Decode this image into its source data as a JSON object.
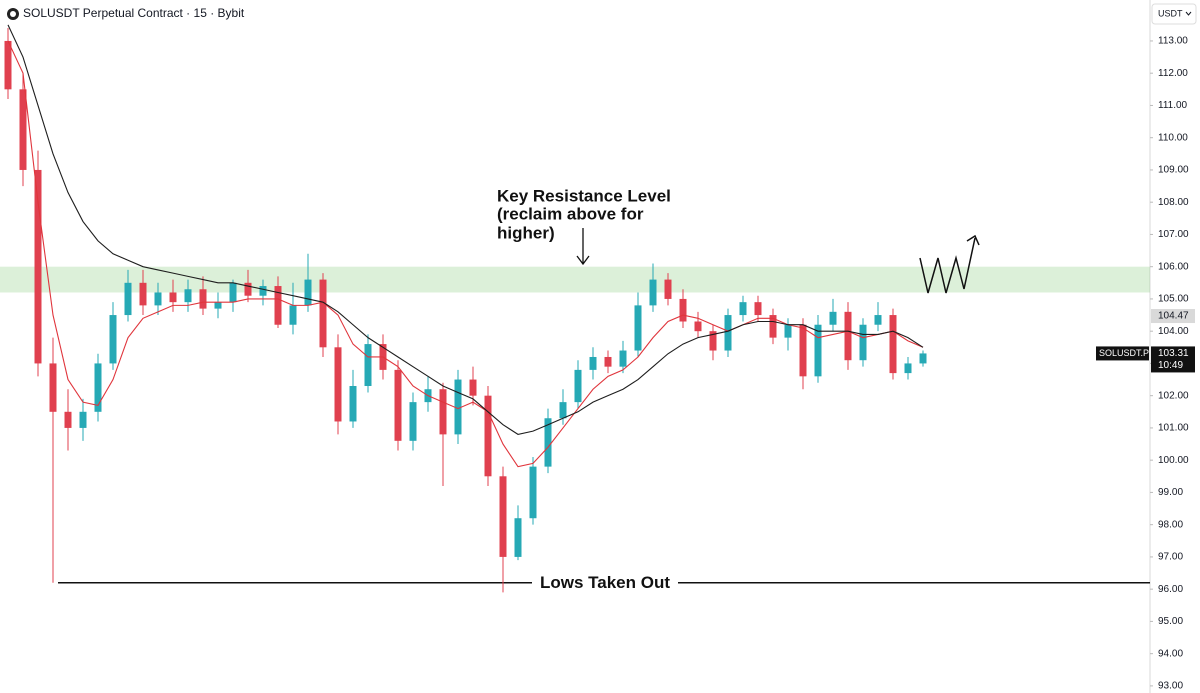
{
  "header": {
    "title": "SOLUSDT Perpetual Contract · 15 · Bybit",
    "currency": "USDT"
  },
  "chart_data": {
    "type": "candlestick",
    "open": [
      113,
      111.5,
      109,
      103,
      101.5,
      101,
      101.5,
      103,
      104.5,
      105.5,
      104.8,
      105.2,
      104.9,
      105.3,
      104.7,
      104.9,
      105.5,
      105.1,
      105.4,
      104.2,
      104.8,
      105.6,
      103.5,
      101.2,
      102.3,
      103.6,
      102.8,
      100.6,
      101.8,
      102.2,
      100.8,
      102.5,
      102,
      99.5,
      97,
      98.2,
      99.8,
      101.3,
      101.8,
      102.8,
      103.2,
      102.9,
      103.4,
      104.8,
      105.6,
      105,
      104.3,
      104,
      103.4,
      104.5,
      104.9,
      104.5,
      103.8,
      104.2,
      102.6,
      104.2,
      104.6,
      103.1,
      104.2,
      104.5,
      102.7,
      103
    ],
    "high": [
      113.4,
      112,
      109.6,
      103.8,
      102.2,
      101.9,
      103.3,
      104.9,
      105.9,
      105.9,
      105.5,
      105.6,
      105.6,
      105.7,
      105.2,
      105.6,
      105.9,
      105.6,
      105.7,
      105.5,
      106.4,
      105.8,
      103.9,
      102.8,
      103.9,
      103.9,
      103.1,
      102.1,
      102.6,
      102.4,
      102.8,
      102.9,
      102.3,
      99.8,
      98.6,
      100.1,
      101.6,
      102.2,
      103.1,
      103.5,
      103.4,
      103.7,
      105.2,
      106.1,
      105.8,
      105.3,
      104.6,
      104.2,
      104.7,
      105.1,
      105.1,
      104.7,
      104.4,
      104.4,
      104.5,
      105,
      104.9,
      104.4,
      104.9,
      104.7,
      103.2,
      103.4
    ],
    "low": [
      111.2,
      108.5,
      102.6,
      96.2,
      100.3,
      100.6,
      101.2,
      102.8,
      104.3,
      104.5,
      104.5,
      104.6,
      104.6,
      104.5,
      104.4,
      104.6,
      104.9,
      104.8,
      104.1,
      103.9,
      104.6,
      103.2,
      100.8,
      101,
      102.1,
      102.5,
      100.3,
      100.3,
      101.5,
      99.2,
      100.5,
      101.7,
      99.2,
      95.9,
      96.9,
      98,
      99.6,
      101.1,
      101.6,
      102.5,
      102.7,
      102.7,
      103.2,
      104.6,
      104.8,
      104.1,
      103.8,
      103.1,
      103.2,
      104.3,
      104.3,
      103.6,
      103.4,
      102.2,
      102.4,
      104,
      102.8,
      102.9,
      104,
      102.5,
      102.5,
      102.9
    ],
    "close": [
      111.5,
      109,
      103,
      101.5,
      101,
      101.5,
      103,
      104.5,
      105.5,
      104.8,
      105.2,
      104.9,
      105.3,
      104.7,
      104.9,
      105.5,
      105.1,
      105.4,
      104.2,
      104.8,
      105.6,
      103.5,
      101.2,
      102.3,
      103.6,
      102.8,
      100.6,
      101.8,
      102.2,
      100.8,
      102.5,
      102,
      99.5,
      97,
      98.2,
      99.8,
      101.3,
      101.8,
      102.8,
      103.2,
      102.9,
      103.4,
      104.8,
      105.6,
      105,
      104.3,
      104,
      103.4,
      104.5,
      104.9,
      104.5,
      103.8,
      104.2,
      102.6,
      104.2,
      104.6,
      103.1,
      104.2,
      104.5,
      102.7,
      103,
      103.31
    ],
    "up_color": "#26a9b5",
    "down_color": "#e0404f",
    "series": [
      {
        "color": "#e0353c",
        "values": [
          113,
          112,
          108,
          104.5,
          102.5,
          101.8,
          101.7,
          102.5,
          103.8,
          104.4,
          104.6,
          104.8,
          104.8,
          104.9,
          104.9,
          104.9,
          105,
          105,
          105,
          104.8,
          104.8,
          104.9,
          104.5,
          103.6,
          103.2,
          103.2,
          102.9,
          102.3,
          102,
          101.8,
          101.6,
          101.8,
          101.5,
          100.5,
          99.8,
          99.9,
          100.4,
          101,
          101.6,
          102.2,
          102.6,
          102.8,
          103.2,
          103.8,
          104.3,
          104.5,
          104.4,
          104.2,
          104,
          104.2,
          104.4,
          104.4,
          104.2,
          104.1,
          103.8,
          103.9,
          104,
          103.8,
          103.9,
          104,
          103.7,
          103.5
        ]
      },
      {
        "color": "#1e1e1e",
        "values": [
          113.5,
          112.5,
          111,
          109.5,
          108.3,
          107.4,
          106.8,
          106.4,
          106.2,
          106,
          105.9,
          105.8,
          105.7,
          105.6,
          105.5,
          105.5,
          105.4,
          105.3,
          105.2,
          105.1,
          105,
          104.9,
          104.6,
          104.2,
          103.8,
          103.5,
          103.2,
          102.9,
          102.6,
          102.3,
          102.1,
          101.9,
          101.5,
          101.1,
          100.8,
          100.9,
          101.1,
          101.3,
          101.5,
          101.8,
          102,
          102.2,
          102.5,
          102.9,
          103.3,
          103.6,
          103.8,
          103.9,
          104,
          104.2,
          104.3,
          104.3,
          104.2,
          104.2,
          104,
          104,
          104,
          103.9,
          103.9,
          104,
          103.8,
          103.5
        ]
      }
    ],
    "ylim": [
      92.78,
      114.27
    ],
    "yticks": [
      {
        "value": 93,
        "label": "93.00"
      },
      {
        "value": 94,
        "label": "94.00"
      },
      {
        "value": 95,
        "label": "95.00"
      },
      {
        "value": 96,
        "label": "96.00"
      },
      {
        "value": 97,
        "label": "97.00"
      },
      {
        "value": 98,
        "label": "98.00"
      },
      {
        "value": 99,
        "label": "99.00"
      },
      {
        "value": 100,
        "label": "100.00"
      },
      {
        "value": 101,
        "label": "101.00"
      },
      {
        "value": 102,
        "label": "102.00"
      },
      {
        "value": 103,
        "label": "103.00"
      },
      {
        "value": 104,
        "label": "104.00"
      },
      {
        "value": 105,
        "label": "105.00"
      },
      {
        "value": 106,
        "label": "106.00"
      },
      {
        "value": 107,
        "label": "107.00"
      },
      {
        "value": 108,
        "label": "108.00"
      },
      {
        "value": 109,
        "label": "109.00"
      },
      {
        "value": 110,
        "label": "110.00"
      },
      {
        "value": 111,
        "label": "111.00"
      },
      {
        "value": 112,
        "label": "112.00"
      },
      {
        "value": 113,
        "label": "113.00"
      }
    ],
    "ma_price": 104.47,
    "last_price": 103.31,
    "last_price_symbol": "SOLUSDT.P",
    "countdown": "10:49",
    "resistance_zone": [
      105.2,
      106.0
    ],
    "lows_level": 96.2,
    "resistance_text": [
      "Key Resistance Level",
      "(reclaim above for",
      "higher)"
    ],
    "lows_text": "Lows Taken Out"
  }
}
